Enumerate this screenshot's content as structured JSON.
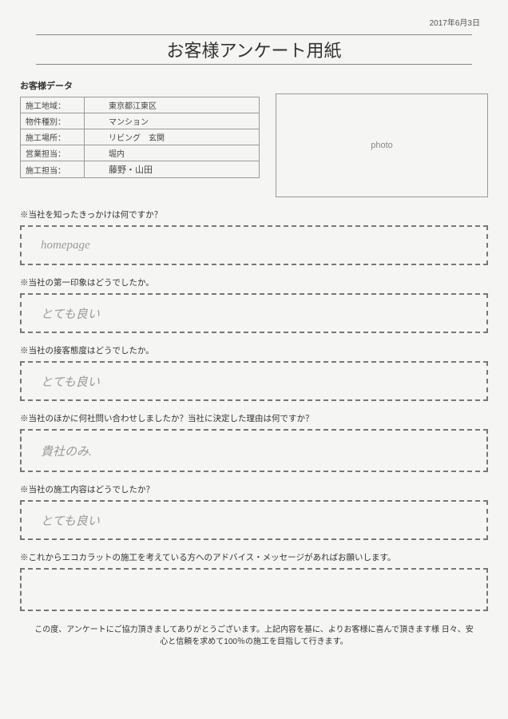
{
  "date": "2017年6月3日",
  "title": "お客様アンケート用紙",
  "data_heading": "お客様データ",
  "fields": [
    {
      "label": "施工地域：",
      "value": "東京都江東区",
      "hand": false
    },
    {
      "label": "物件種別：",
      "value": "マンション",
      "hand": false
    },
    {
      "label": "施工場所：",
      "value": "リビング　玄関",
      "hand": false
    },
    {
      "label": "営業担当：",
      "value": "堀内",
      "hand": false
    },
    {
      "label": "施工担当：",
      "value": "藤野・山田",
      "hand": true
    }
  ],
  "photo_label": "photo",
  "questions": [
    {
      "q": "※当社を知ったきっかけは何ですか？",
      "a": "homepage"
    },
    {
      "q": "※当社の第一印象はどうでしたか。",
      "a": "とても良い"
    },
    {
      "q": "※当社の接客態度はどうでしたか。",
      "a": "とても良い"
    },
    {
      "q": "※当社のほかに何社問い合わせしましたか？当社に決定した理由は何ですか？",
      "a": "貴社のみ."
    },
    {
      "q": "※当社の施工内容はどうでしたか？",
      "a": "とても良い"
    },
    {
      "q": "※これからエコカラットの施工を考えている方へのアドバイス・メッセージがあればお願いします。",
      "a": ""
    }
  ],
  "footer": "この度、アンケートにご協力頂きましてありがとうございます。上記内容を基に、よりお客様に喜んで頂きます様\n日々、安心と信頼を求めて100％の施工を目指して行きます。"
}
